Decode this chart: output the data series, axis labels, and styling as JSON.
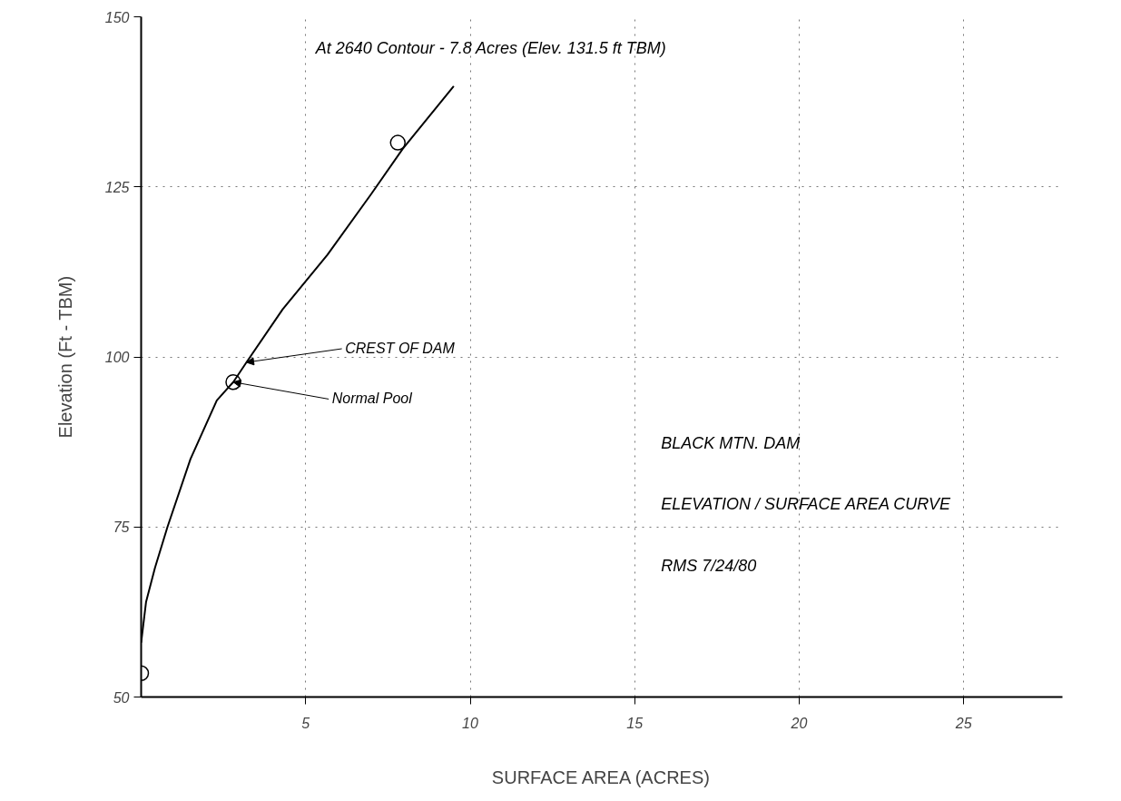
{
  "chart_data": {
    "type": "line",
    "title": "BLACK MTN. DAM",
    "subtitle": "ELEVATION / SURFACE AREA CURVE",
    "xlabel": "SURFACE AREA (ACRES)",
    "ylabel": "Elevation (Ft - TBM)",
    "xlim": [
      0,
      28
    ],
    "ylim": [
      50,
      150
    ],
    "xticks": [
      5,
      10,
      15,
      20,
      25
    ],
    "yticks": [
      50,
      75,
      100,
      125,
      150
    ],
    "grid": true,
    "line_style": "solid",
    "series": [
      {
        "color": "#000000",
        "x": [
          0,
          0.15,
          0.42,
          0.8,
          1.5,
          2.3,
          2.8,
          3.2,
          4.3,
          5.66,
          7.0,
          7.95,
          9.5
        ],
        "values": [
          58,
          64,
          69,
          75,
          85,
          93.6,
          96.3,
          99.2,
          107,
          115,
          124,
          130.6,
          139.8
        ]
      },
      {
        "type": "scatter",
        "marker": "circle",
        "color": "#000000",
        "x": [
          0,
          2.8,
          7.8
        ],
        "values": [
          53.5,
          96.3,
          131.5
        ]
      }
    ],
    "annotations": [
      "At 2640 Contour - 7.8 Acres (Elev. 131.5 ft TBM)",
      {
        "text": "CREST OF DAM",
        "x": 3.2,
        "y": 99.2
      },
      {
        "text": "Normal Pool",
        "x": 2.8,
        "y": 96.3
      },
      "RMS 7/24/80"
    ]
  }
}
